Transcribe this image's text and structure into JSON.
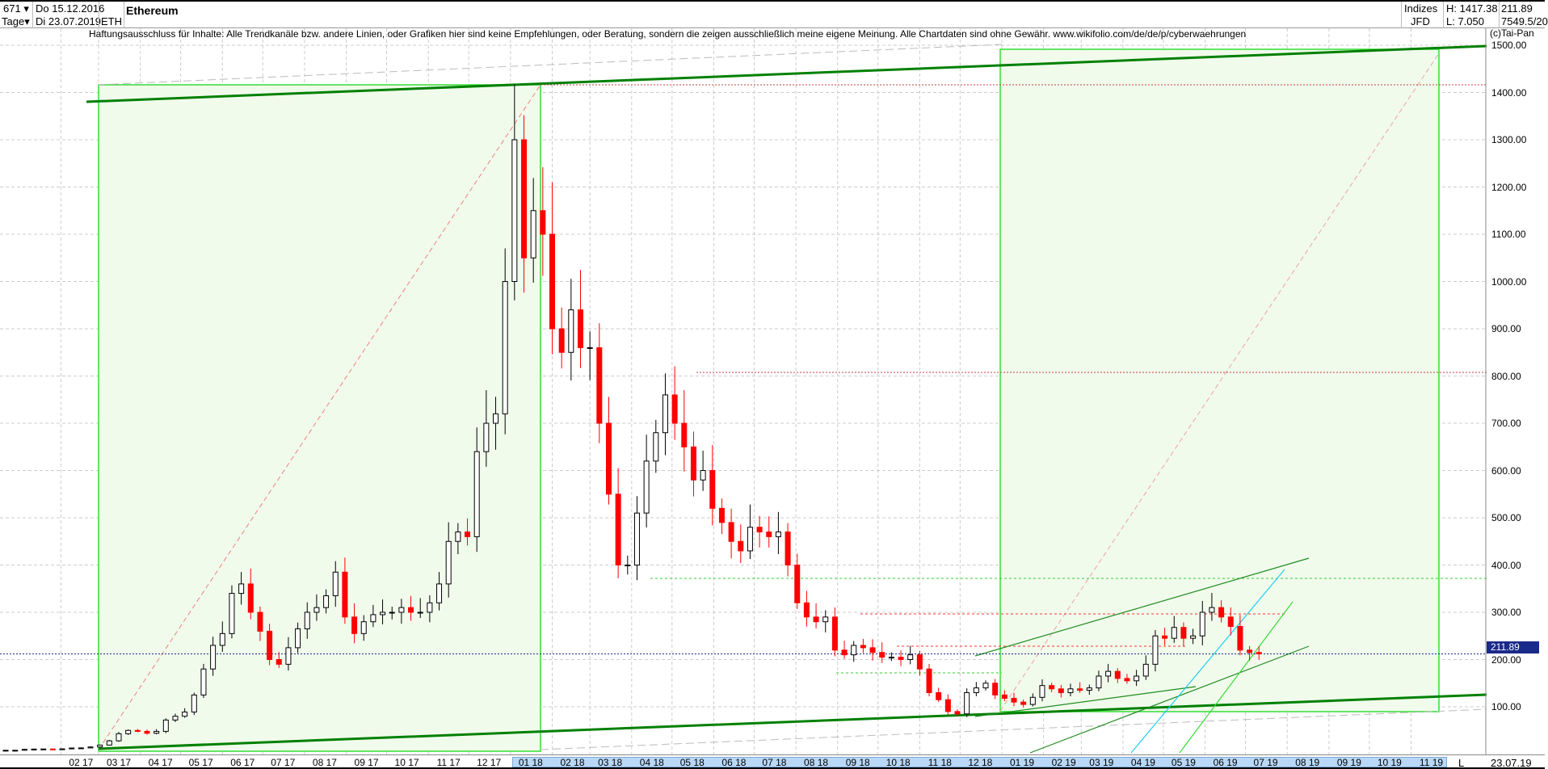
{
  "header": {
    "bar_count": "671",
    "period": "Tage",
    "start_date": "Do 15.12.2016",
    "end_date": "Di 23.07.2019",
    "symbol": "ETH",
    "title": "Ethereum",
    "category": "Indizes",
    "source": "JFD",
    "high": "H: 1417.38",
    "low": "L: 7.050",
    "last": "211.89",
    "extra": "7549.5/20",
    "copyright": "(c)Tai-Pan"
  },
  "disclaimer": "Haftungsausschluss für Inhalte: Alle Trendkanäle bzw. andere Linien, oder Grafiken hier sind keine Empfehlungen, oder Beratung, sondern die zeigen ausschließlich meine eigene Meinung. Alle Chartdaten sind ohne Gewähr.  www.wikifolio.com/de/de/p/cyberwaehrungen",
  "footer": {
    "scale_mode": "L",
    "date": "23.07.19"
  },
  "colors": {
    "up": "#000000",
    "down": "#ff0000",
    "box_fill": "#f0fbec",
    "box_border": "#33dd33",
    "trend": "#008000",
    "current": "#1a2a8a"
  },
  "chart_data": {
    "type": "candlestick",
    "title": "Ethereum",
    "interval": "weekly (approx.)",
    "first_date": "2016-12-15",
    "y_ticks": [
      "100.00",
      "200.00",
      "300.00",
      "400.00",
      "500.00",
      "600.00",
      "700.00",
      "800.00",
      "900.00",
      "1000.00",
      "1100.00",
      "1200.00",
      "1300.00",
      "1400.00",
      "1500.00"
    ],
    "ylim": [
      0,
      1500
    ],
    "x_ticks": [
      "02 17",
      "03 17",
      "04 17",
      "05 17",
      "06 17",
      "07 17",
      "08 17",
      "09 17",
      "10 17",
      "11 17",
      "12 17",
      "01 18",
      "02 18",
      "03 18",
      "04 18",
      "05 18",
      "06 18",
      "07 18",
      "08 18",
      "09 18",
      "10 18",
      "11 18",
      "12 18",
      "01 19",
      "02 19",
      "03 19",
      "04 19",
      "05 19",
      "06 19",
      "07 19",
      "08 19",
      "09 19",
      "10 19",
      "11 19"
    ],
    "current_price": 211.89,
    "current_label": "211.89",
    "levels": {
      "high": 1417.38,
      "resistance": 808,
      "support": 370
    },
    "closes": [
      8,
      8,
      8,
      10,
      10.5,
      10.7,
      10.6,
      11,
      12.8,
      13,
      15,
      19,
      28,
      43,
      50,
      48,
      44,
      48,
      72,
      80,
      89,
      125,
      180,
      230,
      255,
      340,
      360,
      300,
      260,
      200,
      190,
      225,
      265,
      300,
      310,
      335,
      385,
      290,
      255,
      280,
      295,
      300,
      300,
      310,
      300,
      300,
      320,
      360,
      450,
      470,
      460,
      640,
      700,
      720,
      1000,
      1300,
      1050,
      1150,
      1100,
      900,
      850,
      940,
      860,
      860,
      700,
      550,
      400,
      400,
      510,
      620,
      680,
      760,
      700,
      650,
      580,
      600,
      520,
      490,
      450,
      430,
      480,
      470,
      460,
      470,
      400,
      320,
      290,
      280,
      290,
      220,
      210,
      230,
      225,
      215,
      205,
      205,
      200,
      210,
      180,
      130,
      115,
      90,
      85,
      130,
      140,
      150,
      125,
      118,
      110,
      105,
      120,
      145,
      138,
      130,
      138,
      135,
      140,
      165,
      175,
      160,
      155,
      165,
      190,
      250,
      245,
      268,
      245,
      250,
      300,
      310,
      290,
      270,
      220,
      215,
      212
    ]
  }
}
